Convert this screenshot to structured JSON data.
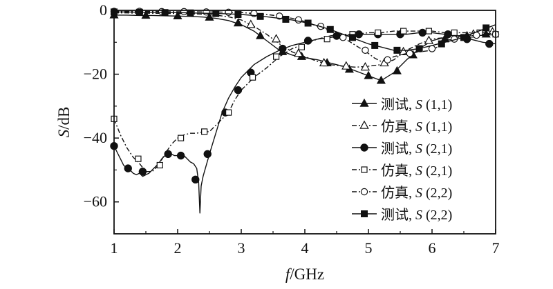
{
  "chart_data": {
    "type": "line",
    "xlabel": "f/GHz",
    "ylabel": "S/dB",
    "xlim": [
      1,
      7
    ],
    "ylim": [
      -70,
      0
    ],
    "x_ticks": [
      1,
      2,
      3,
      4,
      5,
      6,
      7
    ],
    "y_ticks": [
      0,
      -20,
      -40,
      -60
    ],
    "x_tick_labels": [
      "1",
      "2",
      "3",
      "4",
      "5",
      "6",
      "7"
    ],
    "y_tick_labels": [
      "0",
      "−20",
      "−40",
      "−60"
    ],
    "legend_position": "right",
    "series": [
      {
        "name": "测试, S (1,1)",
        "name_prefix": "测试, ",
        "name_var": "S",
        "name_suffix": " (1,1)",
        "line_style": "solid",
        "marker": "filled-triangle",
        "x": [
          1,
          1.2,
          1.4,
          1.6,
          1.8,
          2.0,
          2.2,
          2.4,
          2.6,
          2.8,
          3.0,
          3.2,
          3.4,
          3.6,
          3.8,
          4.0,
          4.2,
          4.4,
          4.6,
          4.8,
          5.0,
          5.2,
          5.4,
          5.6,
          5.8,
          6.0,
          6.2,
          6.4,
          6.6,
          6.8,
          7.0
        ],
        "y": [
          -1.5,
          -1.5,
          -1.6,
          -1.6,
          -1.7,
          -1.8,
          -1.9,
          -2.1,
          -2.5,
          -3.2,
          -4.5,
          -6.5,
          -9.5,
          -12.5,
          -14.0,
          -14.8,
          -15.5,
          -16.5,
          -17.5,
          -19.0,
          -20.5,
          -22.0,
          -19.5,
          -15.5,
          -12.0,
          -9.5,
          -8.5,
          -8.0,
          -8.0,
          -7.5,
          -7.0
        ],
        "markers_x": [
          1.0,
          1.5,
          2.0,
          2.5,
          2.95,
          3.3,
          3.65,
          3.95,
          4.35,
          4.7,
          5.0,
          5.2,
          5.45,
          5.7,
          6.2,
          6.55,
          6.85
        ],
        "markers_y": [
          -1.5,
          -1.6,
          -1.8,
          -2.2,
          -4.0,
          -8.0,
          -13.0,
          -14.5,
          -16.5,
          -18.5,
          -20.5,
          -22.0,
          -19.0,
          -14.0,
          -9.0,
          -8.0,
          -7.5
        ]
      },
      {
        "name": "仿真, S (1,1)",
        "name_prefix": "仿真, ",
        "name_var": "S",
        "name_suffix": " (1,1)",
        "line_style": "dash-dot",
        "marker": "open-triangle",
        "x": [
          1,
          1.2,
          1.4,
          1.6,
          1.8,
          2.0,
          2.2,
          2.4,
          2.6,
          2.8,
          3.0,
          3.2,
          3.4,
          3.6,
          3.8,
          4.0,
          4.2,
          4.4,
          4.6,
          4.8,
          5.0,
          5.2,
          5.4,
          5.6,
          5.8,
          6.0,
          6.2,
          6.4,
          6.6,
          6.8,
          7.0
        ],
        "y": [
          -0.8,
          -0.8,
          -0.9,
          -0.9,
          -1.0,
          -1.0,
          -1.1,
          -1.2,
          -1.5,
          -2.0,
          -3.0,
          -5.0,
          -7.5,
          -10.5,
          -13.0,
          -14.5,
          -16.0,
          -17.0,
          -17.5,
          -17.8,
          -17.5,
          -17.0,
          -15.5,
          -12.5,
          -10.5,
          -9.0,
          -8.5,
          -8.0,
          -7.5,
          -7.0,
          -6.5
        ],
        "markers_x": [
          3.15,
          3.55,
          3.9,
          4.3,
          4.65,
          4.95,
          5.25,
          5.55,
          5.95,
          6.3,
          6.65,
          6.95
        ],
        "markers_y": [
          -4.5,
          -9.0,
          -13.5,
          -16.5,
          -17.5,
          -17.8,
          -16.5,
          -13.0,
          -9.5,
          -8.3,
          -7.5,
          -6.8
        ]
      },
      {
        "name": "测试, S (2,1)",
        "name_prefix": "测试, ",
        "name_var": "S",
        "name_suffix": " (2,1)",
        "line_style": "solid",
        "marker": "filled-circle",
        "x": [
          1.0,
          1.05,
          1.1,
          1.15,
          1.2,
          1.25,
          1.3,
          1.35,
          1.4,
          1.45,
          1.5,
          1.55,
          1.6,
          1.65,
          1.7,
          1.75,
          1.8,
          1.85,
          1.9,
          1.95,
          2.0,
          2.05,
          2.1,
          2.15,
          2.2,
          2.25,
          2.3,
          2.33,
          2.35,
          2.37,
          2.4,
          2.5,
          2.6,
          2.7,
          2.8,
          2.9,
          3.0,
          3.2,
          3.4,
          3.6,
          3.8,
          4.0,
          4.2,
          4.4,
          4.6,
          4.8,
          5.0,
          5.2,
          5.4,
          5.6,
          5.8,
          6.0,
          6.2,
          6.4,
          6.6,
          6.8,
          7.0
        ],
        "y": [
          -42.5,
          -44.5,
          -46.5,
          -48.5,
          -49.5,
          -50.0,
          -51.0,
          -51.5,
          -51.0,
          -52.0,
          -51.5,
          -51.0,
          -50.0,
          -49.0,
          -48.0,
          -46.5,
          -45.5,
          -45.0,
          -45.0,
          -45.5,
          -45.5,
          -45.0,
          -45.5,
          -46.5,
          -47.5,
          -48.0,
          -49.5,
          -54.0,
          -63.5,
          -55.0,
          -52.0,
          -45.0,
          -38.5,
          -32.0,
          -27.5,
          -24.0,
          -21.0,
          -17.0,
          -14.5,
          -12.5,
          -11.0,
          -10.0,
          -9.0,
          -8.5,
          -8.0,
          -7.5,
          -7.5,
          -7.5,
          -7.5,
          -7.5,
          -7.0,
          -7.0,
          -7.5,
          -8.0,
          -9.0,
          -10.0,
          -10.5
        ],
        "markers_x": [
          1.0,
          1.22,
          1.45,
          1.85,
          2.05,
          2.28,
          2.47,
          2.75,
          2.95,
          3.15,
          3.65,
          4.05,
          4.5,
          4.85,
          5.15,
          5.5,
          5.85,
          6.25,
          6.55,
          6.9
        ],
        "markers_y": [
          -42.5,
          -49.5,
          -50.5,
          -45.0,
          -45.5,
          -53.0,
          -45.0,
          -32.0,
          -25.0,
          -19.5,
          -12.0,
          -9.5,
          -8.0,
          -7.5,
          -7.5,
          -7.5,
          -7.0,
          -7.5,
          -9.0,
          -10.5
        ]
      },
      {
        "name": "仿真, S (2,1)",
        "name_prefix": "仿真, ",
        "name_var": "S",
        "name_suffix": " (2,1)",
        "line_style": "dash-dot",
        "marker": "open-square",
        "x": [
          1.0,
          1.1,
          1.2,
          1.3,
          1.4,
          1.5,
          1.6,
          1.7,
          1.8,
          1.9,
          2.0,
          2.1,
          2.2,
          2.3,
          2.4,
          2.5,
          2.6,
          2.7,
          2.8,
          2.9,
          3.0,
          3.2,
          3.4,
          3.6,
          3.8,
          4.0,
          4.2,
          4.4,
          4.6,
          4.8,
          5.0,
          5.2,
          5.4,
          5.6,
          5.8,
          6.0,
          6.2,
          6.4,
          6.6,
          6.8,
          7.0
        ],
        "y": [
          -34.0,
          -39.0,
          -43.0,
          -46.0,
          -48.0,
          -50.5,
          -50.5,
          -48.5,
          -45.0,
          -42.0,
          -40.0,
          -39.0,
          -38.5,
          -38.5,
          -38.0,
          -38.0,
          -36.0,
          -34.0,
          -32.0,
          -28.0,
          -25.0,
          -21.0,
          -18.0,
          -14.5,
          -12.0,
          -10.5,
          -9.0,
          -8.0,
          -7.5,
          -7.5,
          -7.0,
          -7.0,
          -6.5,
          -6.5,
          -6.5,
          -6.5,
          -7.0,
          -7.0,
          -7.0,
          -7.0,
          -7.5
        ],
        "markers_x": [
          1.0,
          1.38,
          1.72,
          2.05,
          2.42,
          2.8,
          3.18,
          3.55,
          3.95,
          4.35,
          4.75,
          5.15,
          5.55,
          5.95,
          6.35,
          6.75,
          7.0
        ],
        "markers_y": [
          -34.0,
          -46.5,
          -48.5,
          -40.0,
          -38.0,
          -32.0,
          -21.0,
          -14.5,
          -11.5,
          -9.0,
          -7.5,
          -7.0,
          -6.5,
          -6.5,
          -7.0,
          -7.0,
          -7.5
        ]
      },
      {
        "name": "仿真, S (2,2)",
        "name_prefix": "仿真, ",
        "name_var": "S",
        "name_suffix": " (2,2)",
        "line_style": "dash-dot",
        "marker": "open-circle",
        "x": [
          1.0,
          1.2,
          1.4,
          1.6,
          1.8,
          2.0,
          2.2,
          2.4,
          2.6,
          2.8,
          3.0,
          3.2,
          3.4,
          3.6,
          3.8,
          4.0,
          4.2,
          4.4,
          4.6,
          4.8,
          5.0,
          5.1,
          5.2,
          5.3,
          5.4,
          5.6,
          5.8,
          6.0,
          6.2,
          6.4,
          6.6,
          6.8,
          7.0
        ],
        "y": [
          -0.3,
          -0.3,
          -0.3,
          -0.3,
          -0.4,
          -0.4,
          -0.4,
          -0.5,
          -0.5,
          -0.6,
          -0.7,
          -1.0,
          -1.3,
          -1.8,
          -2.5,
          -3.5,
          -5.0,
          -6.5,
          -8.5,
          -11.0,
          -13.5,
          -15.0,
          -16.0,
          -15.5,
          -14.5,
          -13.5,
          -13.0,
          -12.5,
          -10.0,
          -8.5,
          -8.0,
          -7.5,
          -7.5
        ],
        "markers_x": [
          1.0,
          1.4,
          1.75,
          2.1,
          2.45,
          2.8,
          3.2,
          3.6,
          3.9,
          4.25,
          4.6,
          4.95,
          5.3,
          5.65,
          6.0,
          6.35,
          6.7,
          7.0
        ],
        "markers_y": [
          -0.3,
          -0.3,
          -0.4,
          -0.4,
          -0.5,
          -0.6,
          -1.0,
          -1.8,
          -3.0,
          -5.0,
          -8.5,
          -12.5,
          -15.5,
          -13.5,
          -12.0,
          -9.0,
          -7.8,
          -7.5
        ]
      },
      {
        "name": "测试, S (2,2)",
        "name_prefix": "测试, ",
        "name_var": "S",
        "name_suffix": " (2,2)",
        "line_style": "solid",
        "marker": "filled-square",
        "x": [
          1.0,
          1.2,
          1.4,
          1.6,
          1.8,
          2.0,
          2.2,
          2.4,
          2.6,
          2.8,
          3.0,
          3.2,
          3.4,
          3.6,
          3.8,
          4.0,
          4.2,
          4.4,
          4.6,
          4.8,
          5.0,
          5.2,
          5.4,
          5.6,
          5.8,
          6.0,
          6.2,
          6.4,
          6.6,
          6.8,
          7.0
        ],
        "y": [
          -0.5,
          -0.5,
          -0.6,
          -0.6,
          -0.7,
          -0.7,
          -0.8,
          -0.9,
          -1.0,
          -1.1,
          -1.3,
          -1.6,
          -2.0,
          -2.5,
          -3.0,
          -3.8,
          -4.8,
          -6.0,
          -7.5,
          -9.0,
          -10.5,
          -11.5,
          -12.5,
          -12.5,
          -12.0,
          -11.0,
          -10.0,
          -9.0,
          -7.5,
          -6.0,
          -4.5
        ],
        "markers_x": [
          1.0,
          1.4,
          1.8,
          2.2,
          2.6,
          2.95,
          3.3,
          3.7,
          4.05,
          4.4,
          4.75,
          5.1,
          5.45,
          5.8,
          6.15,
          6.5,
          6.85
        ],
        "markers_y": [
          -0.5,
          -0.6,
          -0.7,
          -0.8,
          -1.0,
          -1.3,
          -1.9,
          -2.8,
          -4.0,
          -6.0,
          -8.5,
          -11.0,
          -12.5,
          -12.0,
          -10.5,
          -8.5,
          -5.5
        ]
      }
    ]
  }
}
